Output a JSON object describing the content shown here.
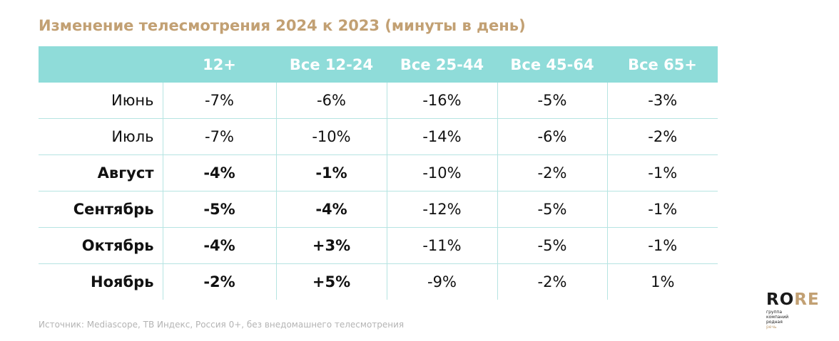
{
  "title": "Изменение телесмотрения 2024 к 2023 (минуты в день)",
  "table": {
    "columns": [
      "",
      "12+",
      "Все 12-24",
      "Все 25-44",
      "Все 45-64",
      "Все 65+"
    ],
    "rows": [
      {
        "label": "Июнь",
        "values": [
          "-7%",
          "-6%",
          "-16%",
          "-5%",
          "-3%"
        ]
      },
      {
        "label": "Июль",
        "values": [
          "-7%",
          "-10%",
          "-14%",
          "-6%",
          "-2%"
        ]
      },
      {
        "label": "Август",
        "values": [
          "-4%",
          "-1%",
          "-10%",
          "-2%",
          "-1%"
        ]
      },
      {
        "label": "Сентябрь",
        "values": [
          "-5%",
          "-4%",
          "-12%",
          "-5%",
          "-1%"
        ]
      },
      {
        "label": "Октябрь",
        "values": [
          "-4%",
          "+3%",
          "-11%",
          "-5%",
          "-1%"
        ]
      },
      {
        "label": "Ноябрь",
        "values": [
          "-2%",
          "+5%",
          "-9%",
          "-2%",
          "1%"
        ]
      }
    ]
  },
  "colors": {
    "title": "#c2a073",
    "header_bg": "#8fdcd9",
    "positive": "#2f7f78"
  },
  "source": "Источник: Mediascope, ТВ Индекс, Россия 0+, без внедомашнего телесмотрения",
  "logo": {
    "mark_main": "RO",
    "mark_accent": "RE",
    "line1": "группа",
    "line2": "компаний",
    "line3": "родная",
    "line4": "речь"
  }
}
